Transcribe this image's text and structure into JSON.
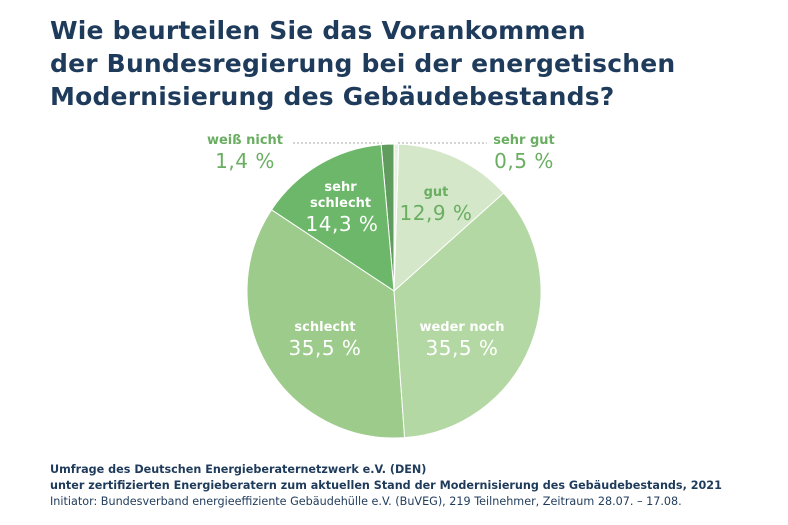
{
  "title_lines": [
    "Wie beurteilen Sie das Vorankommen",
    "der Bundesregierung bei der energetischen",
    "Modernisierung des Gebäudebestands?"
  ],
  "chart_data": {
    "type": "pie",
    "title": "Wie beurteilen Sie das Vorankommen der Bundesregierung bei der energetischen Modernisierung des Gebäudebestands?",
    "slices": [
      {
        "label": "sehr gut",
        "value": 0.5,
        "display": "0,5 %",
        "color": "#e8f2e2"
      },
      {
        "label": "gut",
        "value": 12.9,
        "display": "12,9 %",
        "color": "#d4e7c9"
      },
      {
        "label": "weder noch",
        "value": 35.5,
        "display": "35,5 %",
        "color": "#b4d8a3"
      },
      {
        "label": "schlecht",
        "value": 35.5,
        "display": "35,5 %",
        "color": "#9dcb8b"
      },
      {
        "label": "sehr schlecht",
        "value": 14.3,
        "display": "14,3 %",
        "color": "#6cb769"
      },
      {
        "label": "weiß nicht",
        "value": 1.4,
        "display": "1,4 %",
        "color": "#5f9c5d"
      }
    ],
    "order": "clockwise from top"
  },
  "label_color": "#6aae62",
  "footer": {
    "line1": "Umfrage des Deutschen Energieberaternetzwerk e.V. (DEN)",
    "line2": "unter zertifizierten Energieberatern zum aktuellen Stand der Modernisierung des Gebäudebestands, 2021",
    "line3": "Initiator: Bundesverband energieeffiziente Gebäudehülle e.V. (BuVEG), 219 Teilnehmer, Zeitraum 28.07. – 17.08."
  }
}
